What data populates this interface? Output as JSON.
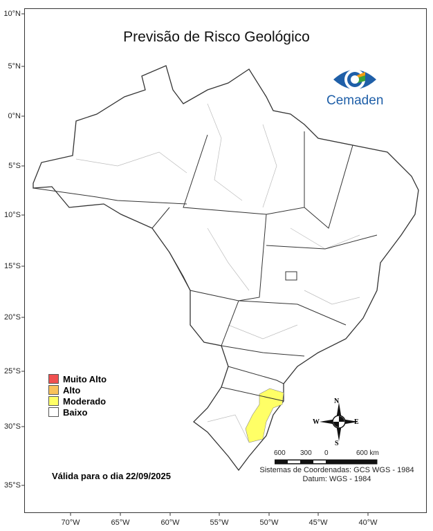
{
  "title": "Previsão de Risco Geológico",
  "logo": {
    "text": "Cemaden",
    "colors": {
      "primary": "#1f5fa8",
      "green": "#3aa23a",
      "orange": "#f39c12"
    }
  },
  "latitude_labels": [
    "10°N",
    "5°N",
    "0°N",
    "5°S",
    "10°S",
    "15°S",
    "20°S",
    "25°S",
    "30°S",
    "35°S"
  ],
  "longitude_labels": [
    "70°W",
    "65°W",
    "60°W",
    "55°W",
    "50°W",
    "45°W",
    "40°W"
  ],
  "legend": [
    {
      "label": "Muito Alto",
      "color": "#f05050"
    },
    {
      "label": "Alto",
      "color": "#f9c25a"
    },
    {
      "label": "Moderado",
      "color": "#ffff66"
    },
    {
      "label": "Baixo",
      "color": "#ffffff"
    }
  ],
  "validity": "Válida para o dia 22/09/2025",
  "compass": {
    "n": "N",
    "s": "S",
    "e": "E",
    "w": "W"
  },
  "scale": {
    "labels": [
      "600",
      "300",
      "0",
      "600 km"
    ]
  },
  "coordinate_system": "Sistemas de Coordenadas: GCS WGS - 1984",
  "datum": "Datum: WGS - 1984"
}
